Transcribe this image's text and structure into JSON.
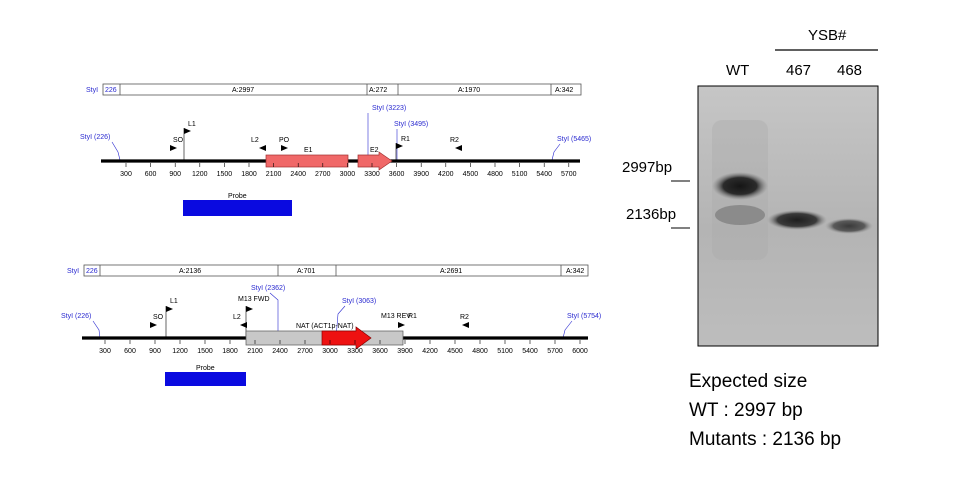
{
  "maps": [
    {
      "id": "wt",
      "segments": [
        {
          "label": "StyI",
          "color": "#2a2ad0"
        },
        {
          "label": "226",
          "color": "#2a2ad0"
        },
        {
          "label": "A:2997"
        },
        {
          "label": "A:272"
        },
        {
          "label": "A:1970"
        },
        {
          "label": "A:342"
        }
      ],
      "styl_sites": [
        "StyI (226)",
        "StyI (3223)",
        "StyI (3495)",
        "StyI (5465)"
      ],
      "primers": [
        "L1",
        "SO",
        "L2",
        "PO",
        "R1",
        "R2"
      ],
      "features": [
        "E1",
        "E2"
      ],
      "ticks": [
        "300",
        "600",
        "900",
        "1200",
        "1500",
        "1800",
        "2100",
        "2400",
        "2700",
        "3000",
        "3300",
        "3600",
        "3900",
        "4200",
        "4500",
        "4800",
        "5100",
        "5400",
        "5700"
      ],
      "probe_label": "Probe"
    },
    {
      "id": "mutant",
      "segments": [
        {
          "label": "StyI",
          "color": "#2a2ad0"
        },
        {
          "label": "226",
          "color": "#2a2ad0"
        },
        {
          "label": "A:2136"
        },
        {
          "label": "A:701"
        },
        {
          "label": "A:2691"
        },
        {
          "label": "A:342"
        }
      ],
      "styl_sites": [
        "StyI (226)",
        "StyI (2362)",
        "StyI (3063)",
        "StyI (5754)"
      ],
      "primers": [
        "L1",
        "SO",
        "M13 FWD",
        "L2",
        "M13 REV",
        "R1",
        "R2"
      ],
      "features": [
        "NAT (ACT1p-NAT)"
      ],
      "ticks": [
        "300",
        "600",
        "900",
        "1200",
        "1500",
        "1800",
        "2100",
        "2400",
        "2700",
        "3000",
        "3300",
        "3600",
        "3900",
        "4200",
        "4500",
        "4800",
        "5100",
        "5400",
        "5700",
        "6000"
      ],
      "probe_label": "Probe"
    }
  ],
  "blot": {
    "group_label": "YSB#",
    "lanes": [
      "WT",
      "467",
      "468"
    ],
    "markers": [
      "2997bp",
      "2136bp"
    ]
  },
  "expected": {
    "title": "Expected size",
    "wt_line": "WT : 2997 bp",
    "mutant_line": "Mutants : 2136 bp"
  },
  "colors": {
    "styl_blue": "#2a2ad0",
    "exon_red": "#f06868",
    "nat_red": "#ee1111",
    "nat_grey": "#c8c8c8",
    "probe_blue": "#0a0ae0"
  }
}
